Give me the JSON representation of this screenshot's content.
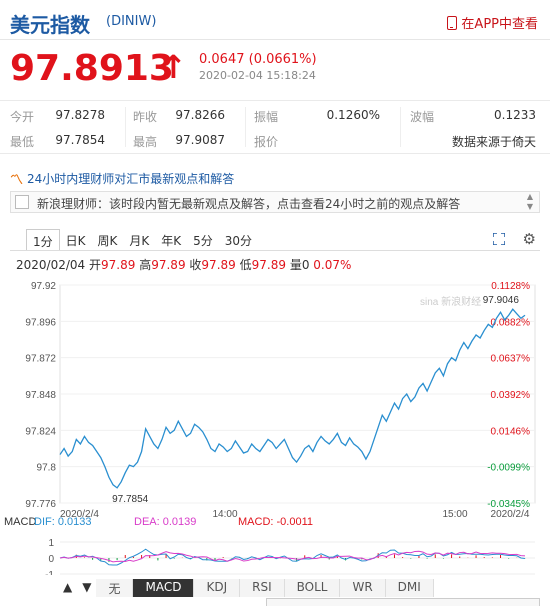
{
  "header": {
    "title": "美元指数",
    "code": "(DINIW)",
    "app_link": "在APP中查看"
  },
  "quote": {
    "price": "97.8913",
    "arrow": "↑",
    "change": "0.0647 (0.0661%)",
    "datetime": "2020-02-04 15:18:24"
  },
  "stats": {
    "open_label": "今开",
    "open": "97.8278",
    "prev_label": "昨收",
    "prev": "97.8266",
    "amp_label": "振幅",
    "amp": "0.1260%",
    "wave_label": "波幅",
    "wave": "0.1233",
    "low_label": "最低",
    "low": "97.7854",
    "high_label": "最高",
    "high": "97.9087",
    "report_label": "报价",
    "source": "数据来源于倚天"
  },
  "news": {
    "heading": "24小时内理财师对汇市最新观点和解答",
    "text": "新浪理财师：该时段内暂无最新观点及解答，点击查看24小时之前的观点及解答"
  },
  "tabs": [
    "1分",
    "日K",
    "周K",
    "月K",
    "年K",
    "5分",
    "30分"
  ],
  "active_tab": "1分",
  "ohlc_line": {
    "date": "2020/02/04",
    "open_label": "开",
    "open": "97.89",
    "high_label": "高",
    "high": "97.89",
    "close_label": "收",
    "close": "97.89",
    "low_label": "低",
    "low": "97.89",
    "vol_label": "量",
    "vol": "0",
    "pct": "0.07%"
  },
  "chart_data": {
    "type": "line",
    "y_ticks_left": [
      "97.92",
      "97.896",
      "97.872",
      "97.848",
      "97.824",
      "97.8",
      "97.776"
    ],
    "y_ticks_right": [
      "0.1128%",
      "0.0882%",
      "0.0637%",
      "0.0392%",
      "0.0146%",
      "-0.0099%",
      "-0.0345%"
    ],
    "x_ticks": [
      "2020/2/4",
      "14:00",
      "15:00",
      "2020/2/4"
    ],
    "ylim": [
      97.776,
      97.92
    ],
    "annotations": {
      "high_label": "97.9046",
      "low_label": "97.7854"
    },
    "watermark": "sina 新浪财经",
    "line_color": "#2a8fd0",
    "values": [
      97.808,
      97.812,
      97.807,
      97.81,
      97.818,
      97.815,
      97.82,
      97.816,
      97.814,
      97.81,
      97.806,
      97.8,
      97.793,
      97.788,
      97.786,
      97.79,
      97.796,
      97.801,
      97.8,
      97.803,
      97.81,
      97.825,
      97.82,
      97.815,
      97.812,
      97.818,
      97.826,
      97.822,
      97.824,
      97.83,
      97.825,
      97.82,
      97.822,
      97.828,
      97.826,
      97.823,
      97.818,
      97.812,
      97.81,
      97.815,
      97.813,
      97.81,
      97.812,
      97.817,
      97.813,
      97.809,
      97.81,
      97.815,
      97.812,
      97.81,
      97.814,
      97.818,
      97.816,
      97.812,
      97.815,
      97.818,
      97.812,
      97.806,
      97.803,
      97.807,
      97.812,
      97.814,
      97.81,
      97.816,
      97.82,
      97.817,
      97.815,
      97.818,
      97.822,
      97.816,
      97.814,
      97.819,
      97.815,
      97.813,
      97.81,
      97.805,
      97.81,
      97.818,
      97.826,
      97.834,
      97.83,
      97.836,
      97.842,
      97.838,
      97.845,
      97.848,
      97.843,
      97.846,
      97.852,
      97.855,
      97.85,
      97.856,
      97.862,
      97.865,
      97.86,
      97.868,
      97.872,
      97.87,
      97.877,
      97.882,
      97.878,
      97.883,
      97.887,
      97.885,
      97.89,
      97.894,
      97.892,
      97.898,
      97.902,
      97.897,
      97.9,
      97.904,
      97.901,
      97.898,
      97.9
    ],
    "macd": {
      "dif_label": "DIF: 0.0133",
      "dea_label": "DEA: 0.0139",
      "macd_label": "MACD: -0.0011",
      "title": "MACD",
      "y_ticks": [
        "1",
        "0",
        "-1"
      ],
      "dif_color": "#2a8fd0",
      "dea_color": "#d83cc9",
      "macd_color": "#e0131b"
    }
  },
  "tools": [
    "▲",
    "▼",
    "无",
    "MACD",
    "KDJ",
    "RSI",
    "BOLL",
    "WR",
    "DMI"
  ],
  "active_tool": "MACD",
  "colors": {
    "up": "#e0131b",
    "brand": "#1d5aa3",
    "down": "#0a9d3c"
  }
}
